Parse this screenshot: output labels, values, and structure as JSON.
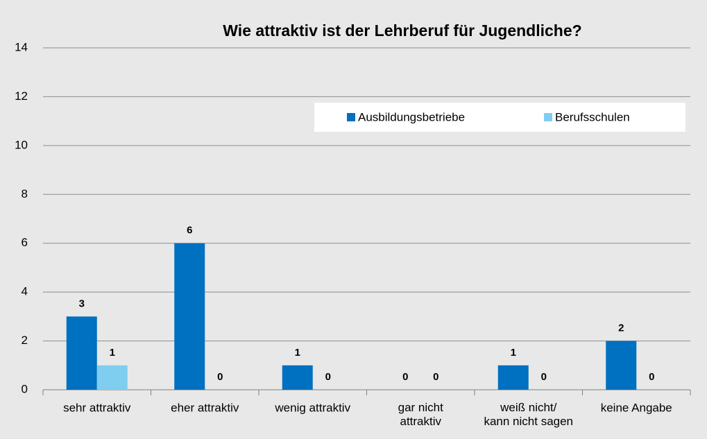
{
  "chart_data": {
    "type": "bar",
    "title": "Wie attraktiv ist der Lehrberuf für Jugendliche?",
    "categories": [
      "sehr attraktiv",
      "eher attraktiv",
      "wenig attraktiv",
      "gar nicht\nattraktiv",
      "weiß nicht/\nkann nicht sagen",
      "keine Angabe"
    ],
    "series": [
      {
        "name": "Ausbildungsbetriebe",
        "color": "#0070c0",
        "values": [
          3,
          6,
          1,
          0,
          1,
          2
        ]
      },
      {
        "name": "Berufsschulen",
        "color": "#7fcef0",
        "values": [
          1,
          0,
          0,
          0,
          0,
          0
        ]
      }
    ],
    "ylim": [
      0,
      14
    ],
    "yticks": [
      0,
      2,
      4,
      6,
      8,
      10,
      12,
      14
    ],
    "grid": true,
    "legend": "top-right"
  }
}
